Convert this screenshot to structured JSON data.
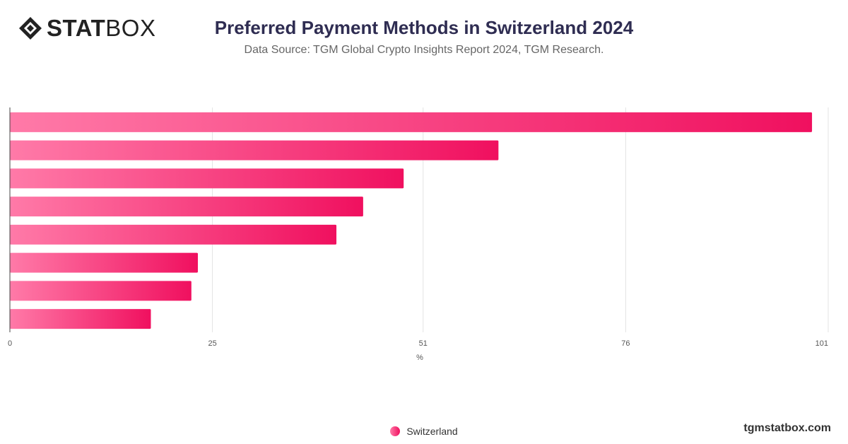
{
  "logo": {
    "bold": "STAT",
    "light": "BOX"
  },
  "header": {
    "title": "Preferred Payment Methods in Switzerland 2024",
    "subtitle": "Data Source: TGM Global Crypto Insights Report 2024, TGM Research."
  },
  "chart_data": {
    "type": "bar",
    "orientation": "horizontal",
    "title": "Preferred Payment Methods in Switzerland 2024",
    "xlabel": "%",
    "ylabel": "",
    "xlim": [
      0,
      101
    ],
    "x_ticks": [
      "0",
      "25",
      "51",
      "76",
      "101"
    ],
    "grid": true,
    "legend_position": "bottom",
    "categories": [
      "",
      "",
      "",
      "",
      "",
      "",
      "",
      ""
    ],
    "series": [
      {
        "name": "Switzerland",
        "values": [
          99,
          60.3,
          48.6,
          43.6,
          40.3,
          23.2,
          22.4,
          17.4
        ]
      }
    ],
    "colors": {
      "gradient_start": "#ff7aa8",
      "gradient_end": "#f0105f"
    }
  },
  "legend": {
    "label": "Switzerland"
  },
  "footer": {
    "website": "tgmstatbox.com"
  }
}
